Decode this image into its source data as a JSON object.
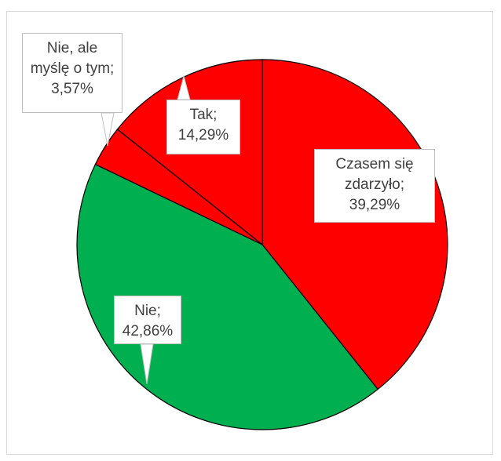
{
  "chart_data": {
    "type": "pie",
    "values": [
      39.29,
      42.86,
      3.57,
      14.29
    ],
    "value_labels": [
      "Czasem się zdarzyło; 39,29%",
      "Nie; 42,86%",
      "Nie, ale myślę o tym; 3,57%",
      "Tak; 14,29%"
    ],
    "colors": [
      "#ff0000",
      "#00b050",
      "#ff0000",
      "#ff0000"
    ]
  }
}
